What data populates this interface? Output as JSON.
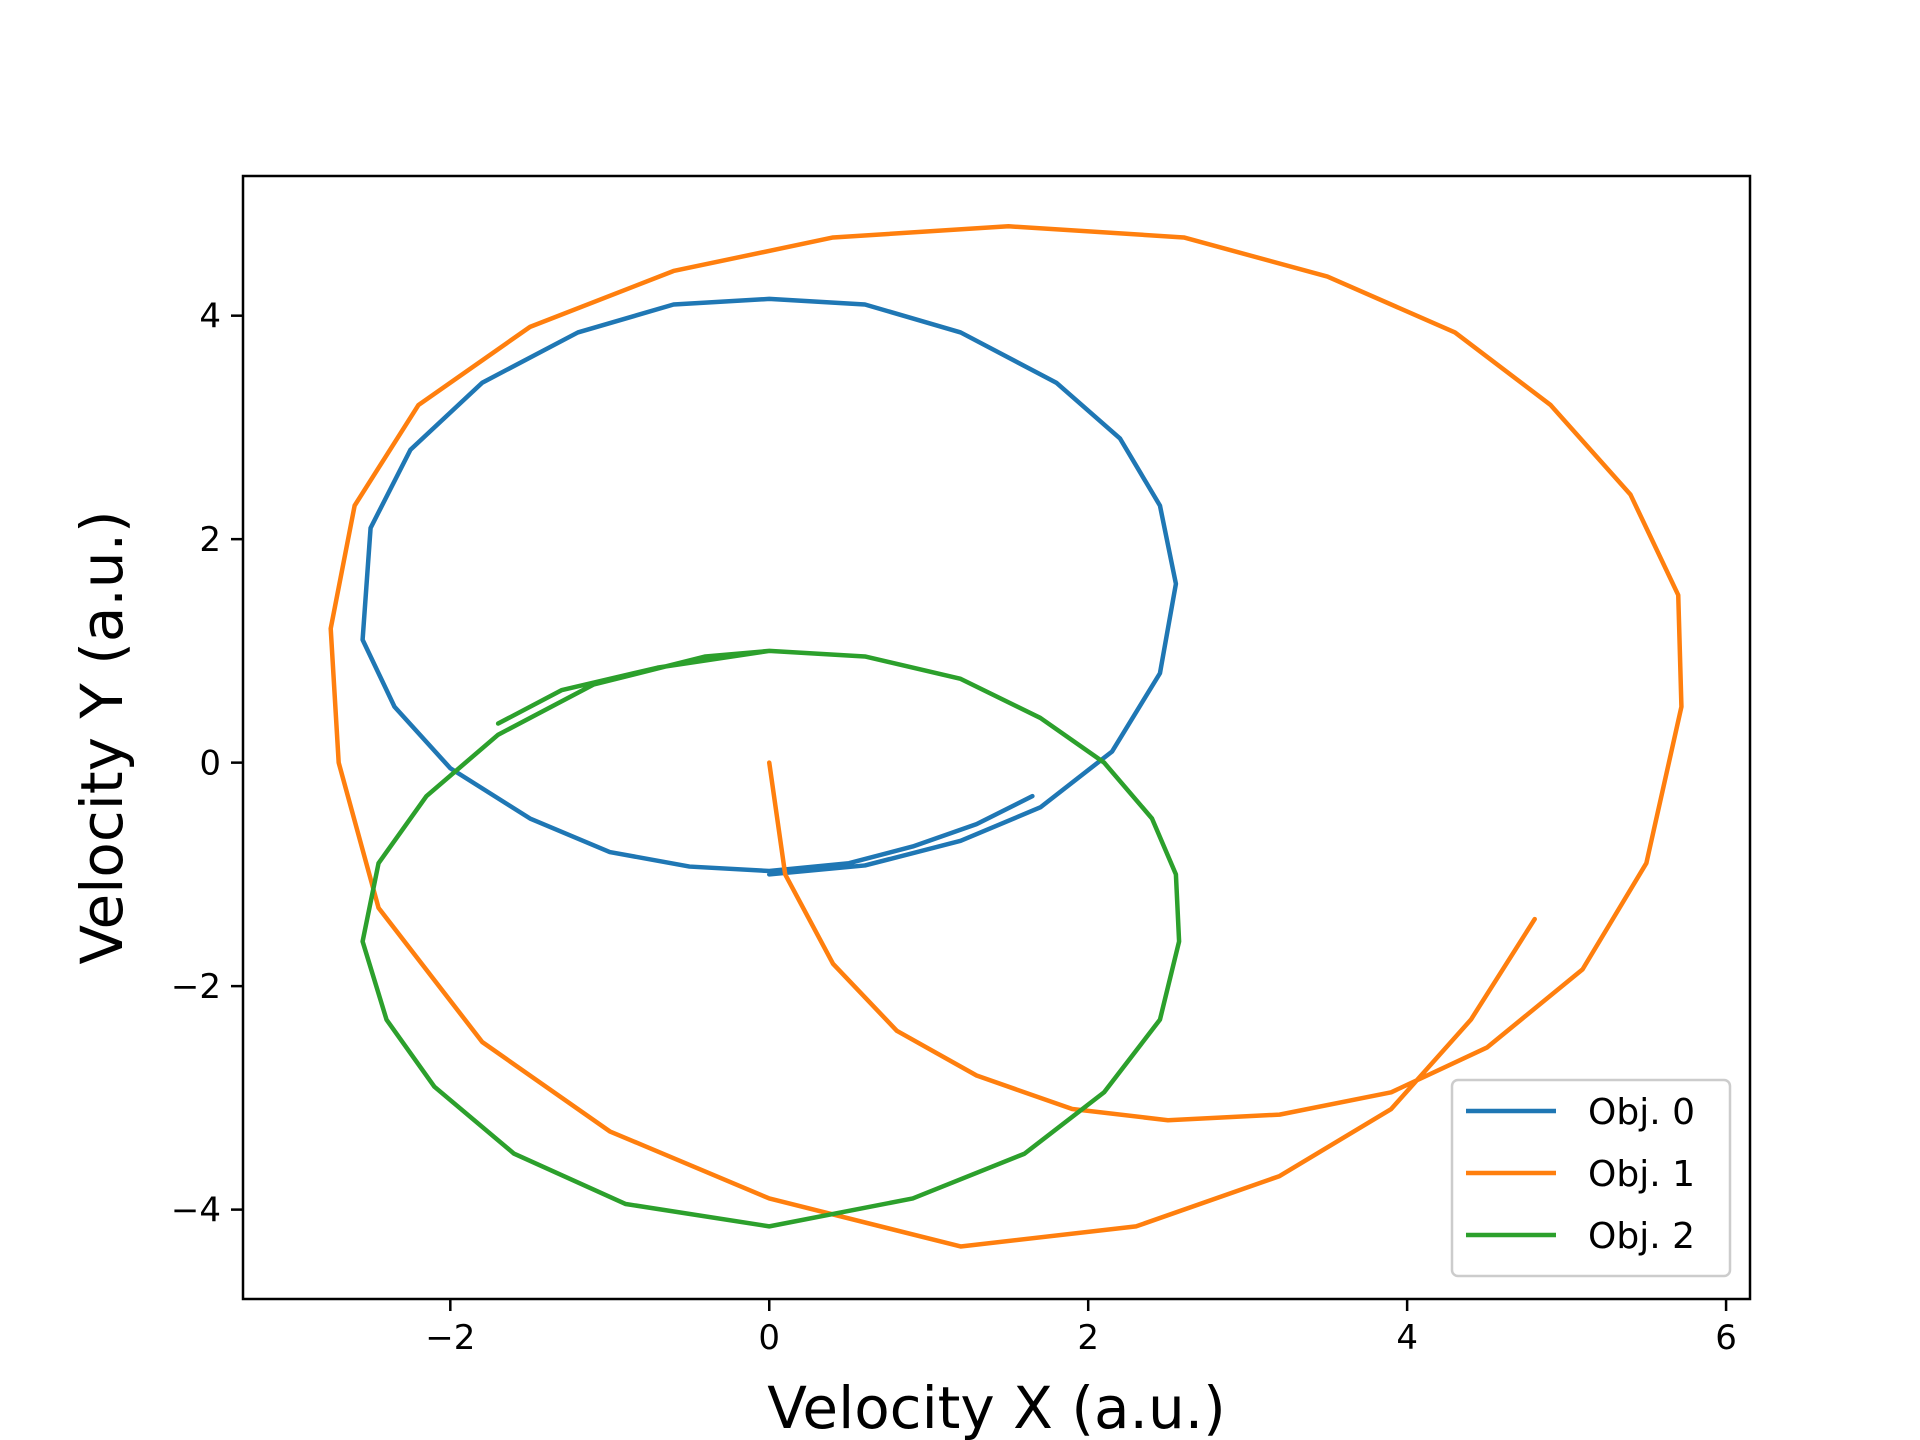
{
  "chart_data": {
    "type": "line",
    "title": "",
    "xlabel": "Velocity X (a.u.)",
    "ylabel": "Velocity Y (a.u.)",
    "xlim": [
      -3.3,
      6.15
    ],
    "ylim": [
      -4.8,
      5.25
    ],
    "xticks": [
      -2,
      0,
      2,
      4,
      6
    ],
    "yticks": [
      -4,
      -2,
      0,
      2,
      4
    ],
    "xtick_labels": [
      "−2",
      "0",
      "2",
      "4",
      "6"
    ],
    "ytick_labels": [
      "−4",
      "−2",
      "0",
      "2",
      "4"
    ],
    "grid": false,
    "legend_position": "lower-right",
    "series": [
      {
        "name": "Obj. 0",
        "color": "#1f77b4",
        "x": [
          1.65,
          1.3,
          0.9,
          0.5,
          0.0,
          -0.5,
          -1.0,
          -1.5,
          -2.0,
          -2.35,
          -2.55,
          -2.5,
          -2.25,
          -1.8,
          -1.2,
          -0.6,
          0.0,
          0.6,
          1.2,
          1.8,
          2.2,
          2.45,
          2.55,
          2.45,
          2.15,
          1.7,
          1.2,
          0.6,
          0.0
        ],
        "y": [
          -0.3,
          -0.55,
          -0.75,
          -0.9,
          -0.97,
          -0.93,
          -0.8,
          -0.5,
          -0.05,
          0.5,
          1.1,
          2.1,
          2.8,
          3.4,
          3.85,
          4.1,
          4.15,
          4.1,
          3.85,
          3.4,
          2.9,
          2.3,
          1.6,
          0.8,
          0.1,
          -0.4,
          -0.7,
          -0.92,
          -1.0
        ]
      },
      {
        "name": "Obj. 1",
        "color": "#ff7f0e",
        "x": [
          0.0,
          0.1,
          0.4,
          0.8,
          1.3,
          1.9,
          2.5,
          3.2,
          3.9,
          4.5,
          5.1,
          5.5,
          5.72,
          5.7,
          5.4,
          4.9,
          4.3,
          3.5,
          2.6,
          1.5,
          0.4,
          -0.6,
          -1.5,
          -2.2,
          -2.6,
          -2.75,
          -2.7,
          -2.45,
          -1.8,
          -1.0,
          0.0,
          1.2,
          2.3,
          3.2,
          3.9,
          4.4,
          4.8
        ],
        "y": [
          0.0,
          -1.0,
          -1.8,
          -2.4,
          -2.8,
          -3.1,
          -3.2,
          -3.15,
          -2.95,
          -2.55,
          -1.85,
          -0.9,
          0.5,
          1.5,
          2.4,
          3.2,
          3.85,
          4.35,
          4.7,
          4.8,
          4.7,
          4.4,
          3.9,
          3.2,
          2.3,
          1.2,
          0.0,
          -1.3,
          -2.5,
          -3.3,
          -3.9,
          -4.33,
          -4.15,
          -3.7,
          -3.1,
          -2.3,
          -1.4
        ]
      },
      {
        "name": "Obj. 2",
        "color": "#2ca02c",
        "x": [
          -1.7,
          -1.3,
          -0.7,
          0.0,
          0.6,
          1.2,
          1.7,
          2.1,
          2.4,
          2.55,
          2.57,
          2.45,
          2.1,
          1.6,
          0.9,
          0.0,
          -0.9,
          -1.6,
          -2.1,
          -2.4,
          -2.55,
          -2.45,
          -2.15,
          -1.7,
          -1.1,
          -0.4,
          0.0
        ],
        "y": [
          0.35,
          0.65,
          0.85,
          1.0,
          0.95,
          0.75,
          0.4,
          0.0,
          -0.5,
          -1.0,
          -1.6,
          -2.3,
          -2.95,
          -3.5,
          -3.9,
          -4.15,
          -3.95,
          -3.5,
          -2.9,
          -2.3,
          -1.6,
          -0.9,
          -0.3,
          0.25,
          0.7,
          0.95,
          1.0
        ]
      }
    ]
  }
}
